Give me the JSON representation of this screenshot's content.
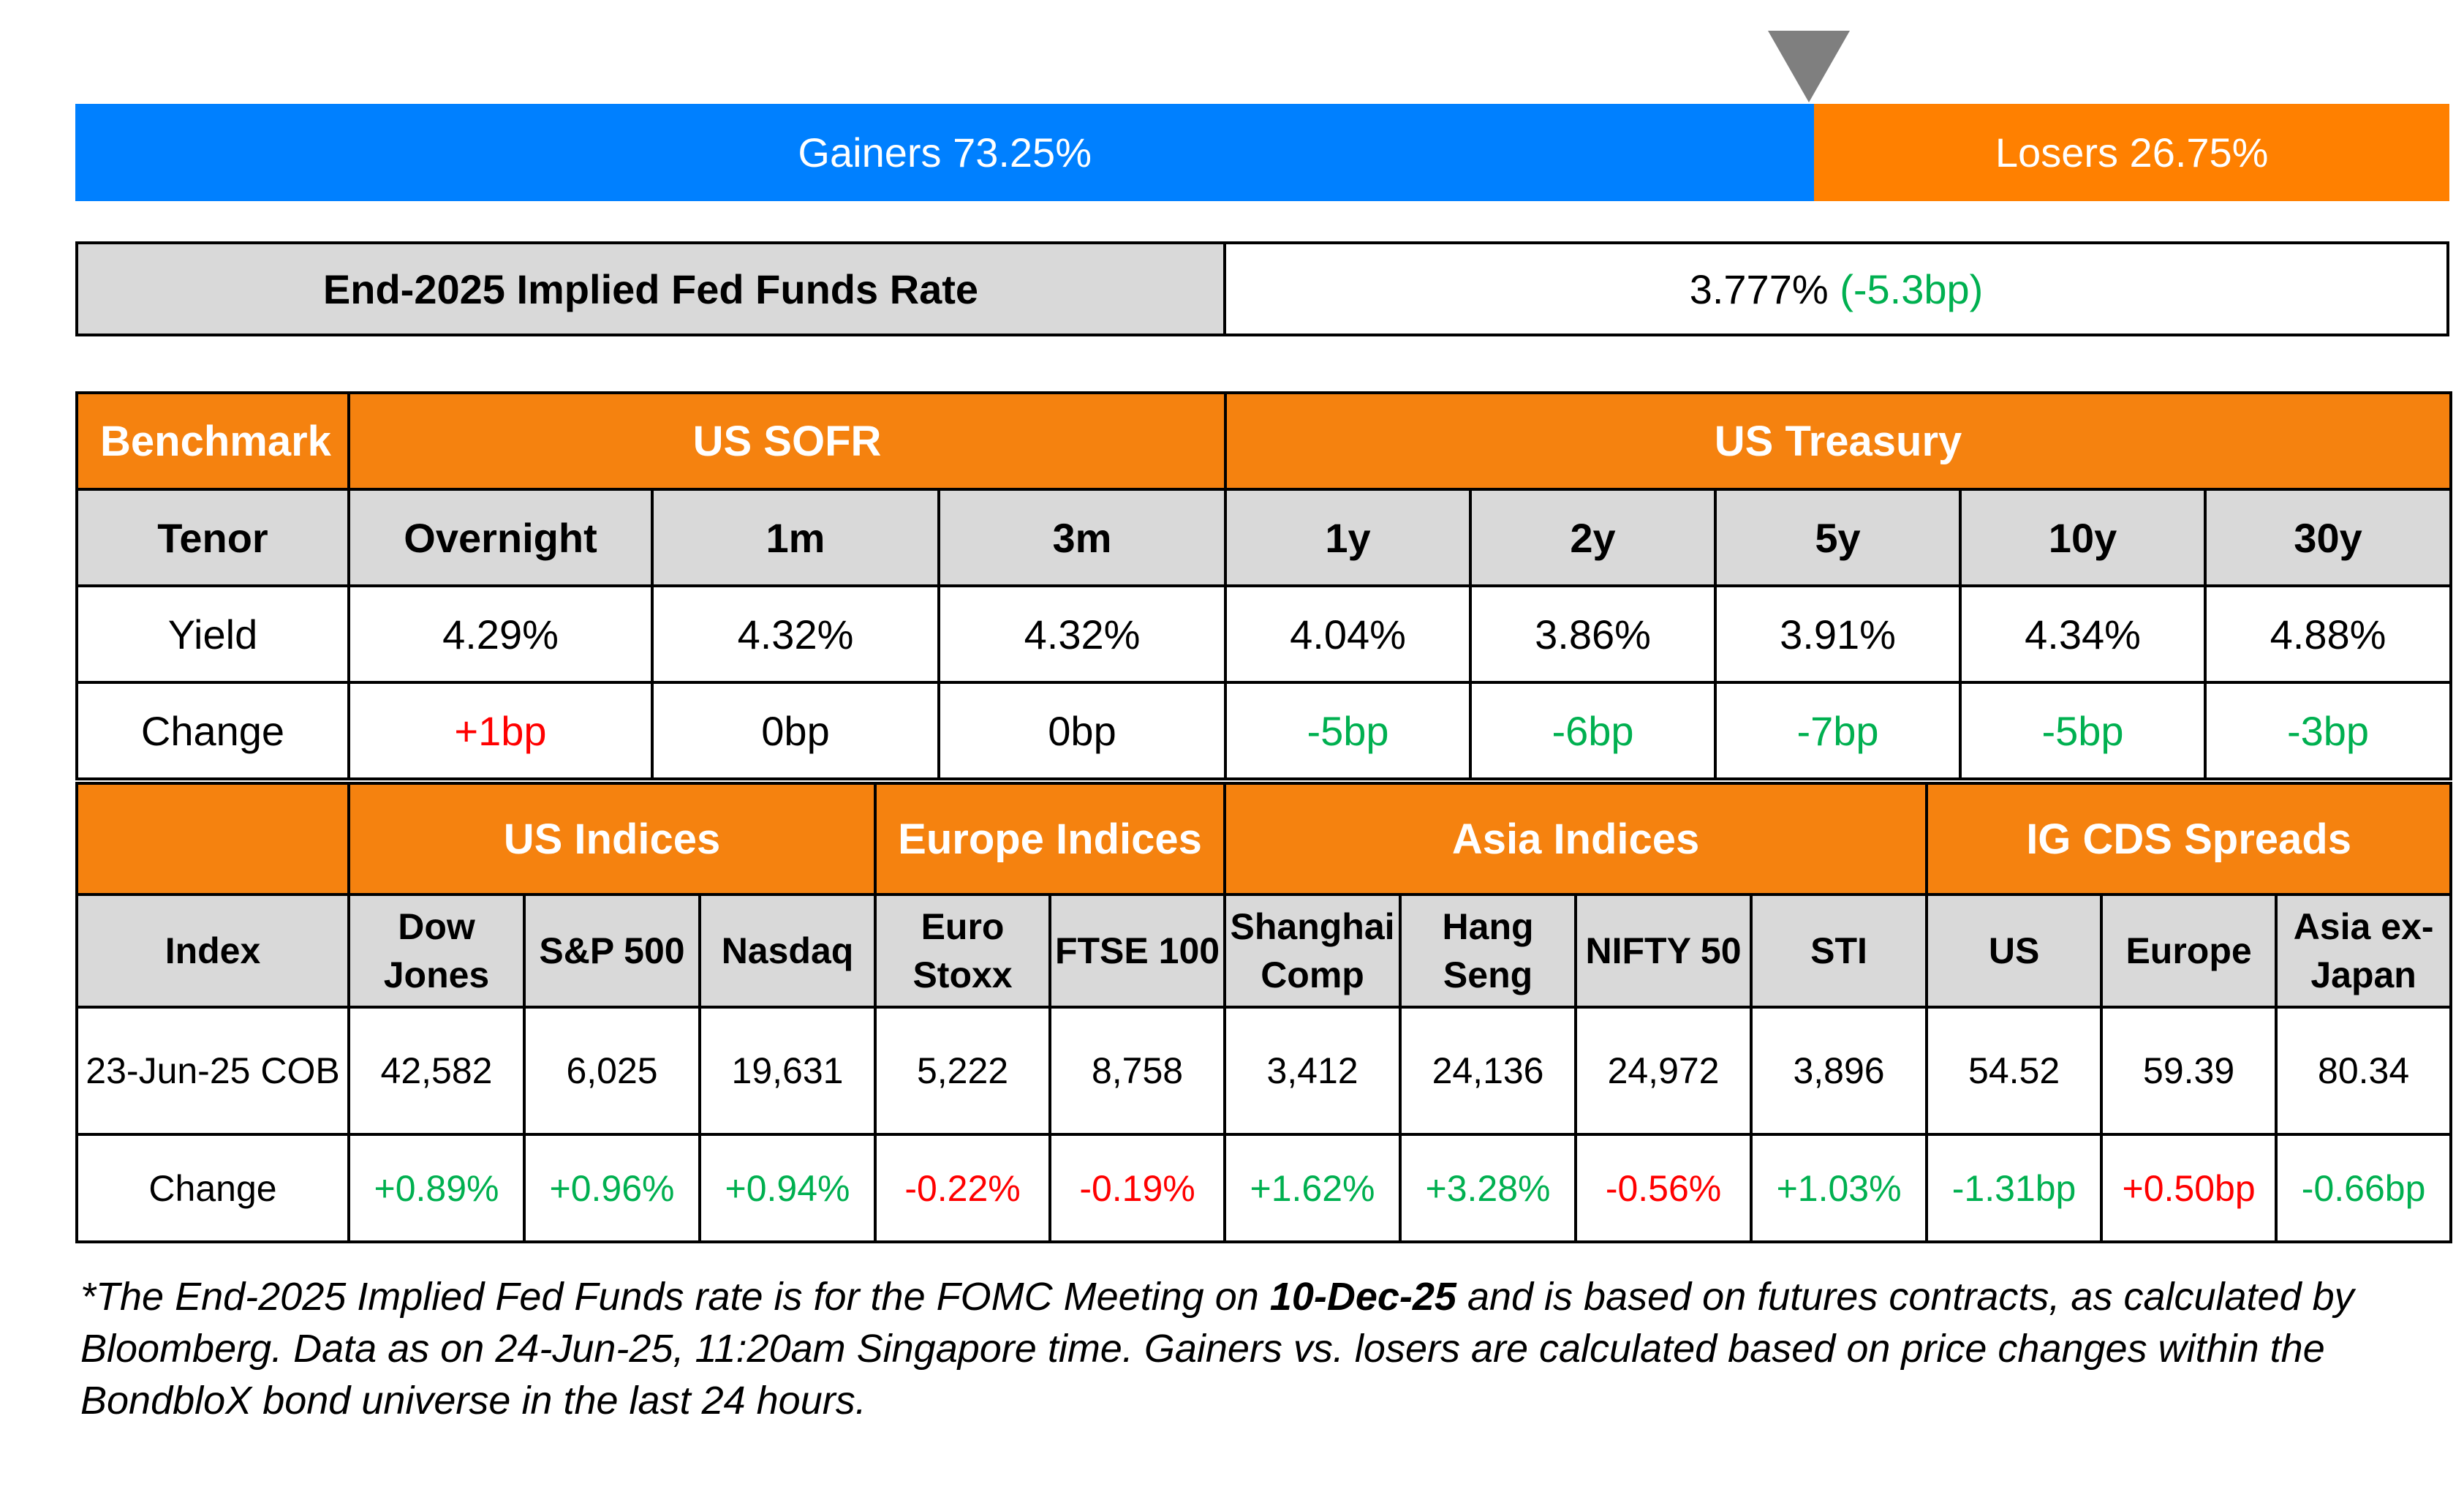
{
  "gainers_losers": {
    "gainers_label": "Gainers 73.25%",
    "losers_label": "Losers 26.75%",
    "gainers_pct": 73.25,
    "losers_pct": 26.75,
    "colors": {
      "gainers": "#0080ff",
      "losers": "#ff8000",
      "marker": "#7f7f7f"
    }
  },
  "fed_funds": {
    "label": "End-2025 Implied Fed Funds Rate",
    "value": "3.777%",
    "change": "(-5.3bp)"
  },
  "rates": {
    "benchmark_label": "Benchmark",
    "groups": [
      "US SOFR",
      "US Treasury"
    ],
    "tenor_label": "Tenor",
    "tenors": [
      "Overnight",
      "1m",
      "3m",
      "1y",
      "2y",
      "5y",
      "10y",
      "30y"
    ],
    "yield_label": "Yield",
    "yields": [
      "4.29%",
      "4.32%",
      "4.32%",
      "4.04%",
      "3.86%",
      "3.91%",
      "4.34%",
      "4.88%"
    ],
    "change_label": "Change",
    "changes": [
      "+1bp",
      "0bp",
      "0bp",
      "-5bp",
      "-6bp",
      "-7bp",
      "-5bp",
      "-3bp"
    ]
  },
  "indices": {
    "groups": [
      "US Indices",
      "Europe Indices",
      "Asia Indices",
      "IG CDS Spreads"
    ],
    "index_label": "Index",
    "names": [
      [
        "Dow",
        "Jones"
      ],
      [
        "S&P 500"
      ],
      [
        "Nasdaq"
      ],
      [
        "Euro",
        "Stoxx"
      ],
      [
        "FTSE 100"
      ],
      [
        "Shanghai",
        "Comp"
      ],
      [
        "Hang",
        "Seng"
      ],
      [
        "NIFTY 50"
      ],
      [
        "STI"
      ],
      [
        "US"
      ],
      [
        "Europe"
      ],
      [
        "Asia ex-",
        "Japan"
      ]
    ],
    "date_label": "23-Jun-25 COB",
    "values": [
      "42,582",
      "6,025",
      "19,631",
      "5,222",
      "8,758",
      "3,412",
      "24,136",
      "24,972",
      "3,896",
      "54.52",
      "59.39",
      "80.34"
    ],
    "change_label": "Change",
    "changes": [
      "+0.89%",
      "+0.96%",
      "+0.94%",
      "-0.22%",
      "-0.19%",
      "+1.62%",
      "+3.28%",
      "-0.56%",
      "+1.03%",
      "-1.31bp",
      "+0.50bp",
      "-0.66bp"
    ]
  },
  "footnote": {
    "part1": "*The End-2025 Implied Fed Funds rate is for the FOMC Meeting on ",
    "date": "10-Dec-25",
    "part2": " and is based on futures contracts, as calculated by Bloomberg. Data as on 24-Jun-25, 11:20am Singapore time. Gainers vs. losers are calculated based on price changes within the BondbloX bond universe in the last 24 hours."
  }
}
